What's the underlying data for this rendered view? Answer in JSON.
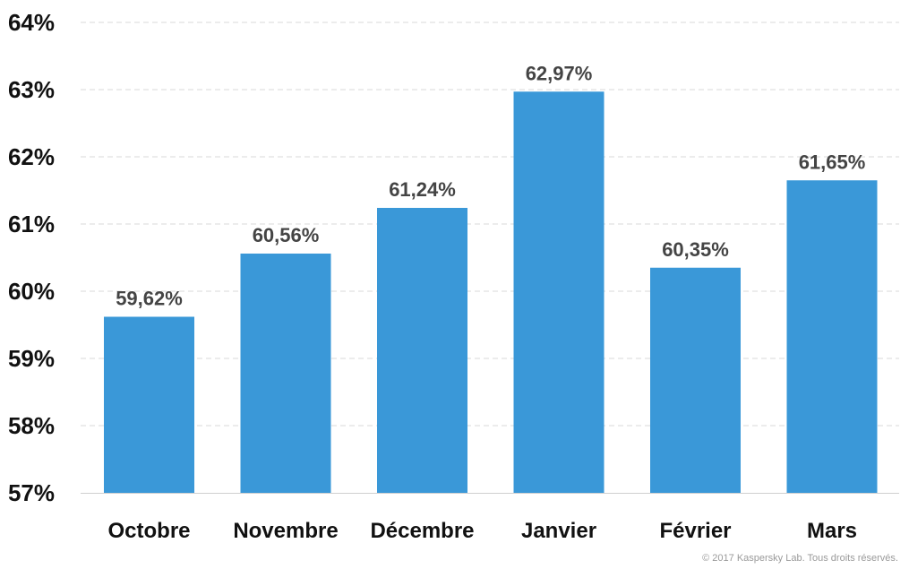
{
  "chart_data": {
    "type": "bar",
    "title": "",
    "xlabel": "",
    "ylabel": "",
    "categories": [
      "Octobre",
      "Novembre",
      "Décembre",
      "Janvier",
      "Février",
      "Mars"
    ],
    "values": [
      59.62,
      60.56,
      61.24,
      62.97,
      60.35,
      61.65
    ],
    "value_labels": [
      "59,62%",
      "60,56%",
      "61,24%",
      "62,97%",
      "60,35%",
      "61,65%"
    ],
    "ylim": [
      57,
      64
    ],
    "yticks": [
      57,
      58,
      59,
      60,
      61,
      62,
      63,
      64
    ],
    "ytick_labels": [
      "57%",
      "58%",
      "59%",
      "60%",
      "61%",
      "62%",
      "63%",
      "64%"
    ],
    "grid": true,
    "grid_style": "dashed",
    "legend": "none",
    "colors": {
      "bar": "#3a98d8",
      "grid": "#d9d9d9",
      "axis": "#cfcfcf",
      "data_label": "#444444",
      "tick_label": "#111111"
    }
  },
  "footer": {
    "copyright": "© 2017 Kaspersky Lab. Tous droits réservés."
  }
}
